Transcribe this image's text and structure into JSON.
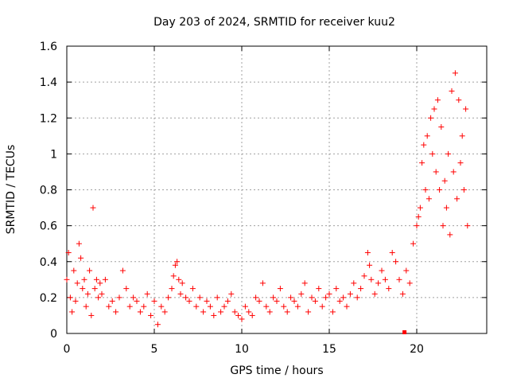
{
  "chart_data": {
    "type": "scatter",
    "title": "Day 203 of 2024, SRMTID for receiver kuu2",
    "xlabel": "GPS time / hours",
    "ylabel": "SRMTID / TECUs",
    "xlim": [
      0,
      24
    ],
    "ylim": [
      0,
      1.6
    ],
    "xticks": [
      0,
      5,
      10,
      15,
      20
    ],
    "xtick_labels": [
      "0",
      "5",
      "10",
      "15",
      "20"
    ],
    "yticks": [
      0,
      0.2,
      0.4,
      0.6,
      0.8,
      1,
      1.2,
      1.4,
      1.6
    ],
    "ytick_labels": [
      "0",
      "0.2",
      "0.4",
      "0.6",
      "0.8",
      "1",
      "1.2",
      "1.4",
      "1.6"
    ],
    "grid": true,
    "marker": "+",
    "color": "#ff0000",
    "series": [
      {
        "name": "SRMTID",
        "x": [
          0.0,
          0.1,
          0.2,
          0.3,
          0.4,
          0.5,
          0.6,
          0.7,
          0.8,
          0.9,
          1.0,
          1.1,
          1.2,
          1.3,
          1.4,
          1.5,
          1.6,
          1.7,
          1.8,
          1.9,
          2.0,
          2.2,
          2.4,
          2.6,
          2.8,
          3.0,
          3.2,
          3.4,
          3.6,
          3.8,
          4.0,
          4.2,
          4.4,
          4.6,
          4.8,
          5.0,
          5.2,
          5.4,
          5.6,
          5.8,
          6.0,
          6.1,
          6.2,
          6.3,
          6.4,
          6.5,
          6.6,
          6.8,
          7.0,
          7.2,
          7.4,
          7.6,
          7.8,
          8.0,
          8.2,
          8.4,
          8.6,
          8.8,
          9.0,
          9.2,
          9.4,
          9.6,
          9.8,
          10.0,
          10.2,
          10.4,
          10.6,
          10.8,
          11.0,
          11.2,
          11.4,
          11.6,
          11.8,
          12.0,
          12.2,
          12.4,
          12.6,
          12.8,
          13.0,
          13.2,
          13.4,
          13.6,
          13.8,
          14.0,
          14.2,
          14.4,
          14.6,
          14.8,
          15.0,
          15.2,
          15.4,
          15.6,
          15.8,
          16.0,
          16.2,
          16.4,
          16.6,
          16.8,
          17.0,
          17.2,
          17.3,
          17.4,
          17.6,
          17.8,
          18.0,
          18.2,
          18.4,
          18.6,
          18.8,
          19.0,
          19.2,
          19.4,
          19.6,
          19.8,
          20.0,
          20.1,
          20.2,
          20.3,
          20.4,
          20.5,
          20.6,
          20.7,
          20.8,
          20.9,
          21.0,
          21.1,
          21.2,
          21.3,
          21.4,
          21.5,
          21.6,
          21.7,
          21.8,
          21.9,
          22.0,
          22.1,
          22.2,
          22.3,
          22.4,
          22.5,
          22.6,
          22.7,
          22.8,
          22.9
        ],
        "y": [
          0.3,
          0.45,
          0.2,
          0.12,
          0.35,
          0.18,
          0.28,
          0.5,
          0.42,
          0.25,
          0.3,
          0.15,
          0.22,
          0.35,
          0.1,
          0.7,
          0.25,
          0.3,
          0.2,
          0.28,
          0.22,
          0.3,
          0.15,
          0.18,
          0.12,
          0.2,
          0.35,
          0.25,
          0.15,
          0.2,
          0.18,
          0.12,
          0.15,
          0.22,
          0.1,
          0.18,
          0.05,
          0.15,
          0.12,
          0.2,
          0.25,
          0.32,
          0.38,
          0.4,
          0.3,
          0.22,
          0.28,
          0.2,
          0.18,
          0.25,
          0.15,
          0.2,
          0.12,
          0.18,
          0.15,
          0.1,
          0.2,
          0.12,
          0.15,
          0.18,
          0.22,
          0.12,
          0.1,
          0.08,
          0.15,
          0.12,
          0.1,
          0.2,
          0.18,
          0.28,
          0.15,
          0.12,
          0.2,
          0.18,
          0.25,
          0.15,
          0.12,
          0.2,
          0.18,
          0.15,
          0.22,
          0.28,
          0.12,
          0.2,
          0.18,
          0.25,
          0.15,
          0.2,
          0.22,
          0.12,
          0.25,
          0.18,
          0.2,
          0.15,
          0.22,
          0.28,
          0.2,
          0.25,
          0.32,
          0.45,
          0.38,
          0.3,
          0.22,
          0.28,
          0.35,
          0.3,
          0.25,
          0.45,
          0.4,
          0.3,
          0.22,
          0.35,
          0.28,
          0.5,
          0.6,
          0.65,
          0.7,
          0.95,
          1.05,
          0.8,
          1.1,
          0.75,
          1.2,
          1.0,
          1.25,
          0.9,
          1.3,
          0.8,
          1.15,
          0.6,
          0.85,
          0.7,
          1.0,
          0.55,
          1.35,
          0.9,
          1.45,
          0.75,
          1.3,
          0.95,
          1.1,
          0.8,
          1.25,
          0.6
        ]
      }
    ],
    "special_point": {
      "x": 19.3,
      "y": 0
    }
  }
}
